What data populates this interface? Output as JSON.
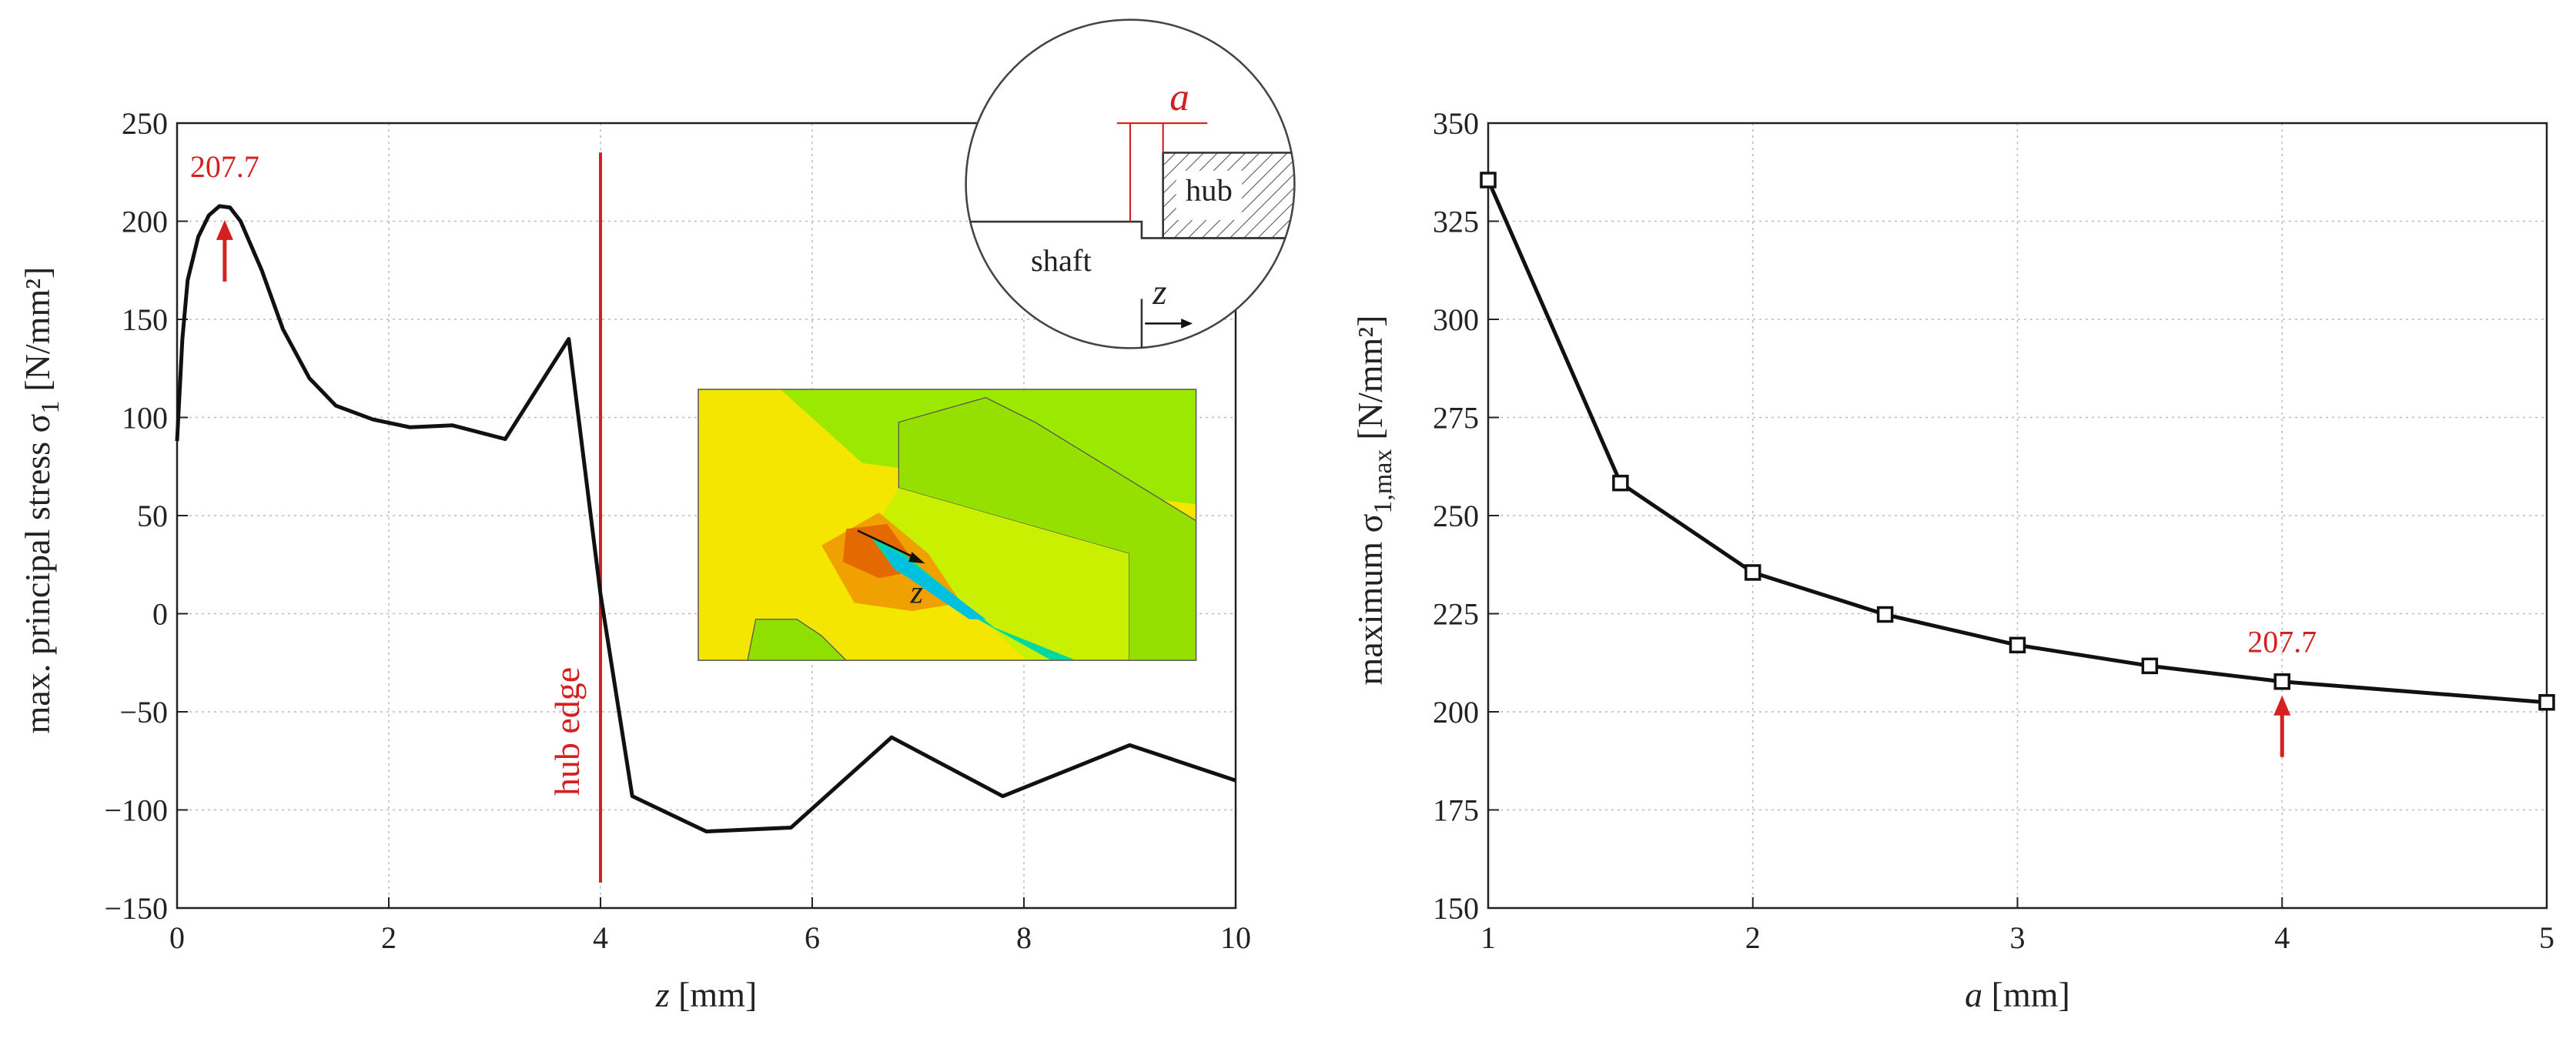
{
  "chart_data": [
    {
      "type": "line",
      "y_label": {
        "text": "max. principal stress σ",
        "sub": "1",
        "unit": "[N/mm²]"
      },
      "x_label": {
        "var": "z",
        "unit": "[mm]"
      },
      "x": [
        0,
        0.05,
        0.1,
        0.2,
        0.3,
        0.4,
        0.5,
        0.6,
        0.8,
        1.0,
        1.25,
        1.5,
        1.85,
        2.2,
        2.6,
        3.1,
        3.7,
        4.0,
        4.3,
        5.0,
        5.8,
        6.75,
        7.8,
        9.0,
        10
      ],
      "series": [
        {
          "color": "#111111",
          "marker": "none",
          "values": [
            88,
            140,
            170,
            192,
            203,
            207.7,
            207,
            200,
            175,
            145,
            120,
            106,
            99,
            95,
            96,
            89,
            140,
            10,
            -93,
            -111,
            -109,
            -63,
            -93,
            -67,
            -85
          ]
        }
      ],
      "xlim": [
        0,
        10
      ],
      "xticks": [
        0,
        2,
        4,
        6,
        8,
        10
      ],
      "ylim": [
        -150,
        250
      ],
      "yticks": [
        {
          "value": -150,
          "label": "−150"
        },
        {
          "value": -100,
          "label": "−100"
        },
        {
          "value": -50,
          "label": "−50"
        },
        0,
        50,
        100,
        150,
        200,
        250
      ],
      "grid": true,
      "annotation": {
        "text": "207.7",
        "x": 0.45,
        "y": 207.7,
        "color": "#d42020"
      },
      "vline": {
        "label": "hub edge",
        "x": 4,
        "y": [
          -137,
          235
        ],
        "color": "#d42020"
      },
      "inset": {
        "a": "a",
        "hub": "hub",
        "shaft": "shaft",
        "z": "z"
      },
      "fem_inset": {
        "z": "z"
      }
    },
    {
      "type": "line",
      "y_label": {
        "text": "maximum σ",
        "sub": "1,max",
        "unit": "[N/mm²]"
      },
      "x_label": {
        "var": "a",
        "unit": "[mm]"
      },
      "x": [
        1,
        1.5,
        2,
        2.5,
        3,
        3.5,
        4,
        5
      ],
      "series": [
        {
          "color": "#111111",
          "marker": "square",
          "values": [
            335.5,
            258.3,
            235.5,
            224.8,
            217,
            211.7,
            207.7,
            202.4
          ]
        }
      ],
      "xlim": [
        1,
        5
      ],
      "xticks": [
        1,
        2,
        3,
        4,
        5
      ],
      "ylim": [
        150,
        350
      ],
      "yticks": [
        150,
        175,
        200,
        225,
        250,
        275,
        300,
        325,
        350
      ],
      "grid": true,
      "annotation": {
        "text": "207.7",
        "x": 4,
        "y": 207.7,
        "color": "#d42020"
      }
    }
  ]
}
